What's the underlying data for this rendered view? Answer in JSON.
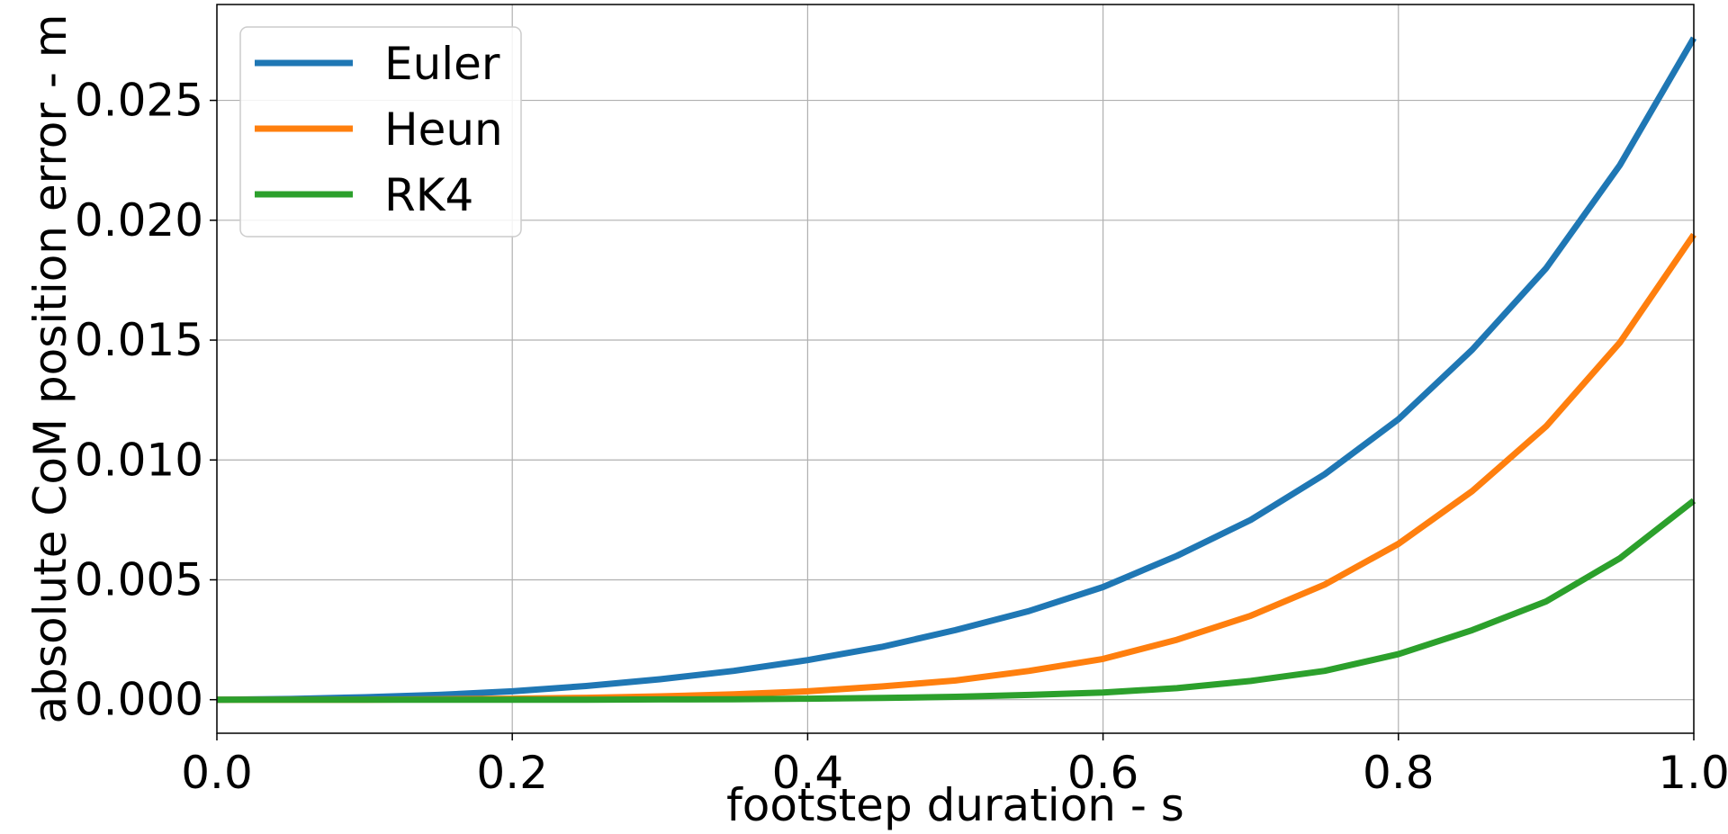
{
  "chart_data": {
    "type": "line",
    "title": "",
    "xlabel": "footstep duration - s",
    "ylabel": "absolute CoM position error - m",
    "xlim": [
      0.0,
      1.0
    ],
    "ylim": [
      -0.0014,
      0.029
    ],
    "x_ticks": [
      0.0,
      0.2,
      0.4,
      0.6,
      0.8,
      1.0
    ],
    "x_tick_labels": [
      "0.0",
      "0.2",
      "0.4",
      "0.6",
      "0.8",
      "1.0"
    ],
    "y_ticks": [
      0.0,
      0.005,
      0.01,
      0.015,
      0.02,
      0.025
    ],
    "y_tick_labels": [
      "0.000",
      "0.005",
      "0.010",
      "0.015",
      "0.020",
      "0.025"
    ],
    "grid": true,
    "legend_position": "top-left",
    "x": [
      0.0,
      0.05,
      0.1,
      0.15,
      0.2,
      0.25,
      0.3,
      0.35,
      0.4,
      0.45,
      0.5,
      0.55,
      0.6,
      0.65,
      0.7,
      0.75,
      0.8,
      0.85,
      0.9,
      0.95,
      1.0
    ],
    "series": [
      {
        "name": "Euler",
        "color": "#1f77b4",
        "values": [
          0.0,
          3e-05,
          0.0001,
          0.0002,
          0.00035,
          0.00057,
          0.00085,
          0.0012,
          0.00165,
          0.0022,
          0.0029,
          0.0037,
          0.0047,
          0.006,
          0.0075,
          0.0094,
          0.0117,
          0.0146,
          0.018,
          0.0223,
          0.0276
        ]
      },
      {
        "name": "Heun",
        "color": "#ff7f0e",
        "values": [
          0.0,
          0.0,
          0.0,
          2e-05,
          4e-05,
          8e-05,
          0.00014,
          0.00022,
          0.00035,
          0.00055,
          0.0008,
          0.0012,
          0.0017,
          0.0025,
          0.0035,
          0.0048,
          0.0065,
          0.0087,
          0.0114,
          0.0149,
          0.0194
        ]
      },
      {
        "name": "RK4",
        "color": "#2ca02c",
        "values": [
          0.0,
          0.0,
          0.0,
          0.0,
          0.0,
          0.0,
          1e-05,
          2e-05,
          4e-05,
          7e-05,
          0.00012,
          0.0002,
          0.0003,
          0.00048,
          0.00078,
          0.0012,
          0.0019,
          0.0029,
          0.0041,
          0.0059,
          0.0083
        ]
      }
    ]
  }
}
